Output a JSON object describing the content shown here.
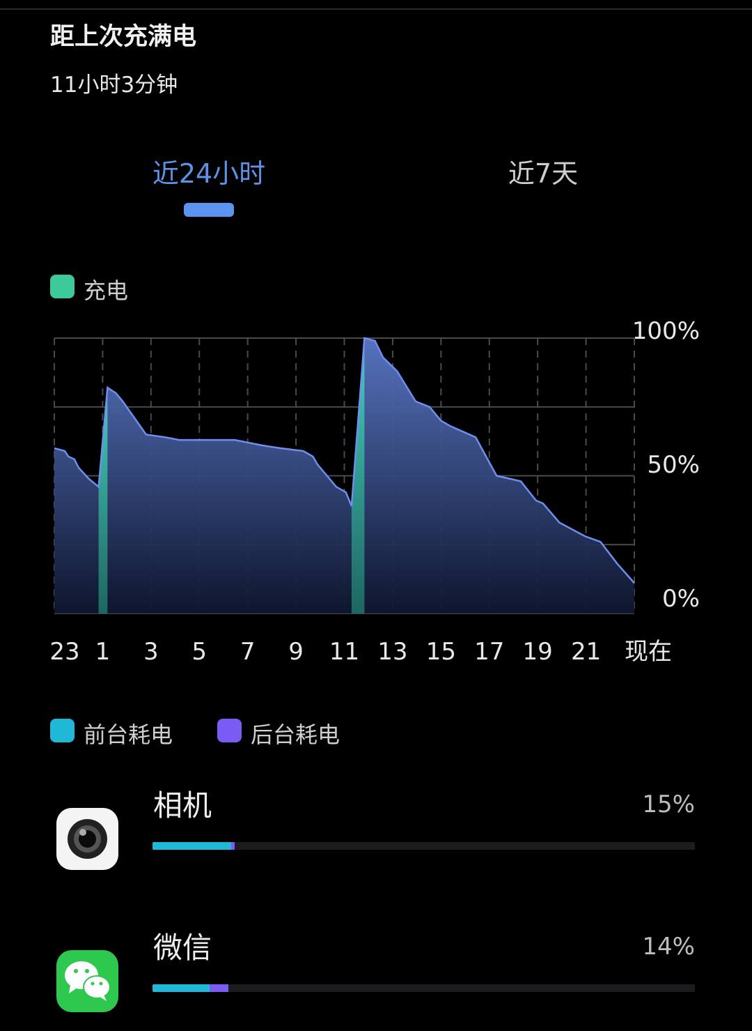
{
  "header": {
    "title": "距上次充满电",
    "since_full_charge": "11小时3分钟"
  },
  "tabs": [
    {
      "label": "近24小时",
      "active": true
    },
    {
      "label": "近7天",
      "active": false
    }
  ],
  "colors": {
    "accent": "#5b93f0",
    "charging": "#3ec99a",
    "line": "#6f8ff0",
    "foreground": "#1fb8d6",
    "background": "#7a5cf5"
  },
  "chart_legend": {
    "charging_label": "充电",
    "charging_icon": "green-square"
  },
  "chart_data": {
    "type": "area",
    "x_ticks": [
      "23",
      "1",
      "3",
      "5",
      "7",
      "9",
      "11",
      "13",
      "15",
      "17",
      "19",
      "21",
      "现在"
    ],
    "x_range": [
      "23:00",
      "23:00 (next day, 现在)"
    ],
    "y_ticks": [
      "100%",
      "50%",
      "0%"
    ],
    "ylim": [
      0,
      100
    ],
    "grid": true,
    "battery_level": [
      {
        "t": "23:00",
        "v": 60
      },
      {
        "t": "23:26",
        "v": 59
      },
      {
        "t": "23:35",
        "v": 57
      },
      {
        "t": "23:50",
        "v": 56
      },
      {
        "t": "00:00",
        "v": 53
      },
      {
        "t": "00:25",
        "v": 49
      },
      {
        "t": "00:50",
        "v": 46
      },
      {
        "t": "01:12",
        "v": 82
      },
      {
        "t": "01:33",
        "v": 80
      },
      {
        "t": "01:50",
        "v": 77
      },
      {
        "t": "02:48",
        "v": 65
      },
      {
        "t": "03:35",
        "v": 64
      },
      {
        "t": "04:10",
        "v": 63
      },
      {
        "t": "06:28",
        "v": 63
      },
      {
        "t": "07:37",
        "v": 61
      },
      {
        "t": "08:22",
        "v": 60
      },
      {
        "t": "09:18",
        "v": 59
      },
      {
        "t": "09:42",
        "v": 57
      },
      {
        "t": "09:54",
        "v": 54
      },
      {
        "t": "10:40",
        "v": 46
      },
      {
        "t": "11:04",
        "v": 44
      },
      {
        "t": "11:18",
        "v": 39
      },
      {
        "t": "11:50",
        "v": 100
      },
      {
        "t": "12:16",
        "v": 99
      },
      {
        "t": "12:36",
        "v": 93
      },
      {
        "t": "13:11",
        "v": 88
      },
      {
        "t": "13:57",
        "v": 77
      },
      {
        "t": "14:32",
        "v": 75
      },
      {
        "t": "15:00",
        "v": 70
      },
      {
        "t": "15:24",
        "v": 68
      },
      {
        "t": "16:26",
        "v": 64
      },
      {
        "t": "17:18",
        "v": 50
      },
      {
        "t": "18:18",
        "v": 48
      },
      {
        "t": "18:56",
        "v": 41
      },
      {
        "t": "19:13",
        "v": 40
      },
      {
        "t": "19:54",
        "v": 33
      },
      {
        "t": "20:58",
        "v": 28
      },
      {
        "t": "21:36",
        "v": 26
      },
      {
        "t": "22:18",
        "v": 18
      },
      {
        "t": "23:00",
        "v": 11
      }
    ],
    "charging_periods": [
      {
        "start": "00:50",
        "end": "01:12"
      },
      {
        "start": "11:18",
        "end": "11:50"
      }
    ]
  },
  "usage_legend": {
    "foreground_label": "前台耗电",
    "background_label": "后台耗电"
  },
  "apps": [
    {
      "name": "相机",
      "percent": "15%",
      "foreground": 14.5,
      "background": 0.6,
      "icon": "camera-icon"
    },
    {
      "name": "微信",
      "percent": "14%",
      "foreground": 10.5,
      "background": 3.5,
      "icon": "wechat-icon"
    }
  ]
}
